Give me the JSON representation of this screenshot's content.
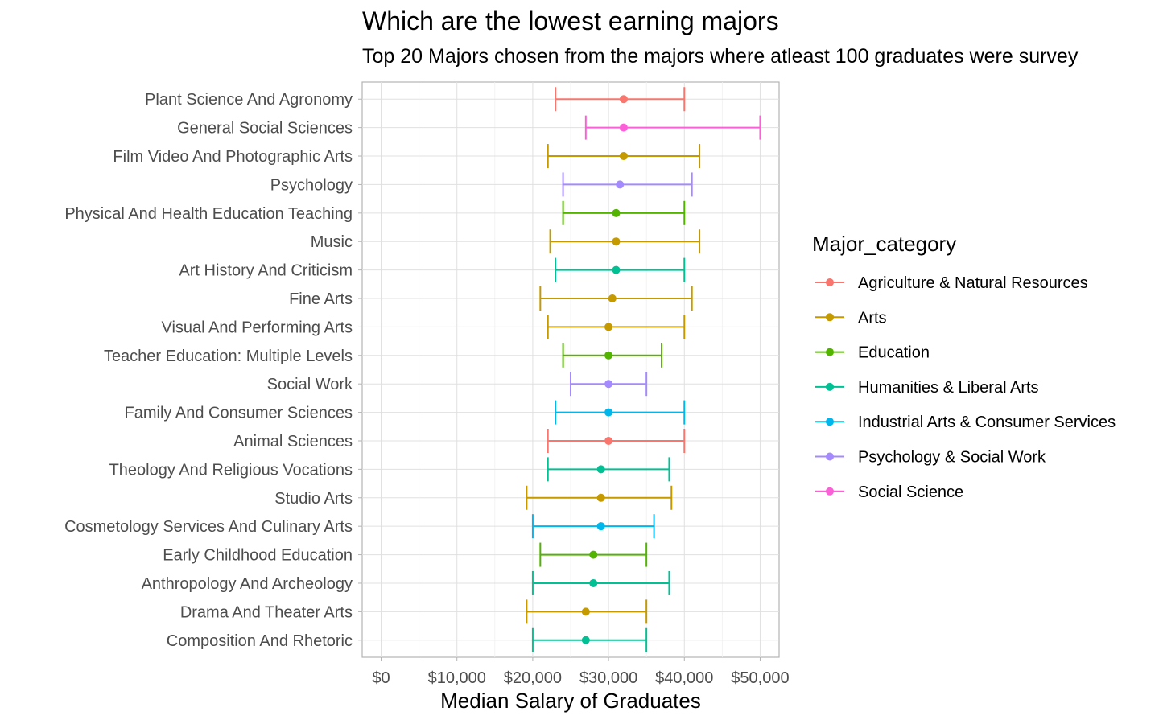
{
  "chart_data": {
    "type": "errorbar",
    "title": "Which are the lowest earning majors",
    "subtitle": "Top 20 Majors chosen from the majors where atleast 100 graduates were survey",
    "xlabel": "Median Salary of Graduates",
    "xlim": [
      -2500,
      52500
    ],
    "x_ticks": [
      0,
      10000,
      20000,
      30000,
      40000,
      50000
    ],
    "x_tick_labels": [
      "$0",
      "$10,000",
      "$20,000",
      "$30,000",
      "$40,000",
      "$50,000"
    ],
    "grid": true,
    "legend": {
      "title": "Major_category",
      "position": "right",
      "entries": [
        {
          "label": "Agriculture & Natural Resources",
          "color": "#F8766D"
        },
        {
          "label": "Arts",
          "color": "#C49A00"
        },
        {
          "label": "Education",
          "color": "#53B400"
        },
        {
          "label": "Humanities & Liberal Arts",
          "color": "#00C094"
        },
        {
          "label": "Industrial Arts & Consumer Services",
          "color": "#00B6EB"
        },
        {
          "label": "Psychology & Social Work",
          "color": "#A58AFF"
        },
        {
          "label": "Social Science",
          "color": "#FB61D7"
        }
      ]
    },
    "series": [
      {
        "major": "Plant Science And Agronomy",
        "category": "Agriculture & Natural Resources",
        "median": 32000,
        "p25": 23000,
        "p75": 40000
      },
      {
        "major": "General Social Sciences",
        "category": "Social Science",
        "median": 32000,
        "p25": 27000,
        "p75": 50000
      },
      {
        "major": "Film Video And Photographic Arts",
        "category": "Arts",
        "median": 32000,
        "p25": 22000,
        "p75": 42000
      },
      {
        "major": "Psychology",
        "category": "Psychology & Social Work",
        "median": 31500,
        "p25": 24000,
        "p75": 41000
      },
      {
        "major": "Physical And Health Education Teaching",
        "category": "Education",
        "median": 31000,
        "p25": 24000,
        "p75": 40000
      },
      {
        "major": "Music",
        "category": "Arts",
        "median": 31000,
        "p25": 22300,
        "p75": 42000
      },
      {
        "major": "Art History And Criticism",
        "category": "Humanities & Liberal Arts",
        "median": 31000,
        "p25": 23000,
        "p75": 40000
      },
      {
        "major": "Fine Arts",
        "category": "Arts",
        "median": 30500,
        "p25": 21000,
        "p75": 41000
      },
      {
        "major": "Visual And Performing Arts",
        "category": "Arts",
        "median": 30000,
        "p25": 22000,
        "p75": 40000
      },
      {
        "major": "Teacher Education: Multiple Levels",
        "category": "Education",
        "median": 30000,
        "p25": 24000,
        "p75": 37000
      },
      {
        "major": "Social Work",
        "category": "Psychology & Social Work",
        "median": 30000,
        "p25": 25000,
        "p75": 35000
      },
      {
        "major": "Family And Consumer Sciences",
        "category": "Industrial Arts & Consumer Services",
        "median": 30000,
        "p25": 23000,
        "p75": 40000
      },
      {
        "major": "Animal Sciences",
        "category": "Agriculture & Natural Resources",
        "median": 30000,
        "p25": 22000,
        "p75": 40000
      },
      {
        "major": "Theology And Religious Vocations",
        "category": "Humanities & Liberal Arts",
        "median": 29000,
        "p25": 22000,
        "p75": 38000
      },
      {
        "major": "Studio Arts",
        "category": "Arts",
        "median": 29000,
        "p25": 19200,
        "p75": 38300
      },
      {
        "major": "Cosmetology Services And Culinary Arts",
        "category": "Industrial Arts & Consumer Services",
        "median": 29000,
        "p25": 20000,
        "p75": 36000
      },
      {
        "major": "Early Childhood Education",
        "category": "Education",
        "median": 28000,
        "p25": 21000,
        "p75": 35000
      },
      {
        "major": "Anthropology And Archeology",
        "category": "Humanities & Liberal Arts",
        "median": 28000,
        "p25": 20000,
        "p75": 38000
      },
      {
        "major": "Drama And Theater Arts",
        "category": "Arts",
        "median": 27000,
        "p25": 19200,
        "p75": 35000
      },
      {
        "major": "Composition And Rhetoric",
        "category": "Humanities & Liberal Arts",
        "median": 27000,
        "p25": 20000,
        "p75": 35000
      }
    ]
  }
}
